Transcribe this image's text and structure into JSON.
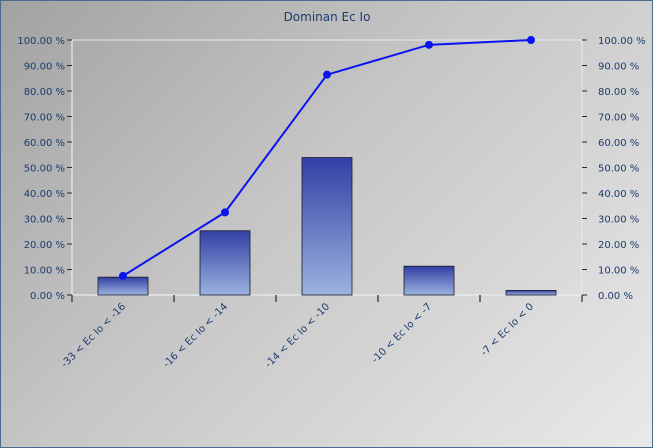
{
  "chart_data": {
    "type": "bar",
    "title": "Dominan Ec Io",
    "categories": [
      "-33 < Ec Io < -16",
      "-16 < Ec Io < -14",
      "-14 < Ec Io < -10",
      "-10 < Ec Io < -7",
      "-7 < Ec Io < 0"
    ],
    "series": [
      {
        "type": "bar",
        "values": [
          7.0,
          25.2,
          53.9,
          11.3,
          1.8
        ],
        "color": "#3a44a8"
      },
      {
        "type": "line",
        "values": [
          7.5,
          32.4,
          86.4,
          98.1,
          100.0
        ],
        "color": "#0a14f0"
      }
    ],
    "ylim": [
      0,
      100
    ],
    "y_ticks": [
      "0.00 %",
      "10.00 %",
      "20.00 %",
      "30.00 %",
      "40.00 %",
      "50.00 %",
      "60.00 %",
      "70.00 %",
      "80.00 %",
      "90.00 %",
      "100.00 %"
    ],
    "y2_ticks": [
      "0.00 %",
      "10.00 %",
      "20.00 %",
      "30.00 %",
      "40.00 %",
      "50.00 %",
      "60.00 %",
      "70.00 %",
      "80.00 %",
      "90.00 %",
      "100.00 %"
    ],
    "grid": false,
    "legend": "none"
  }
}
